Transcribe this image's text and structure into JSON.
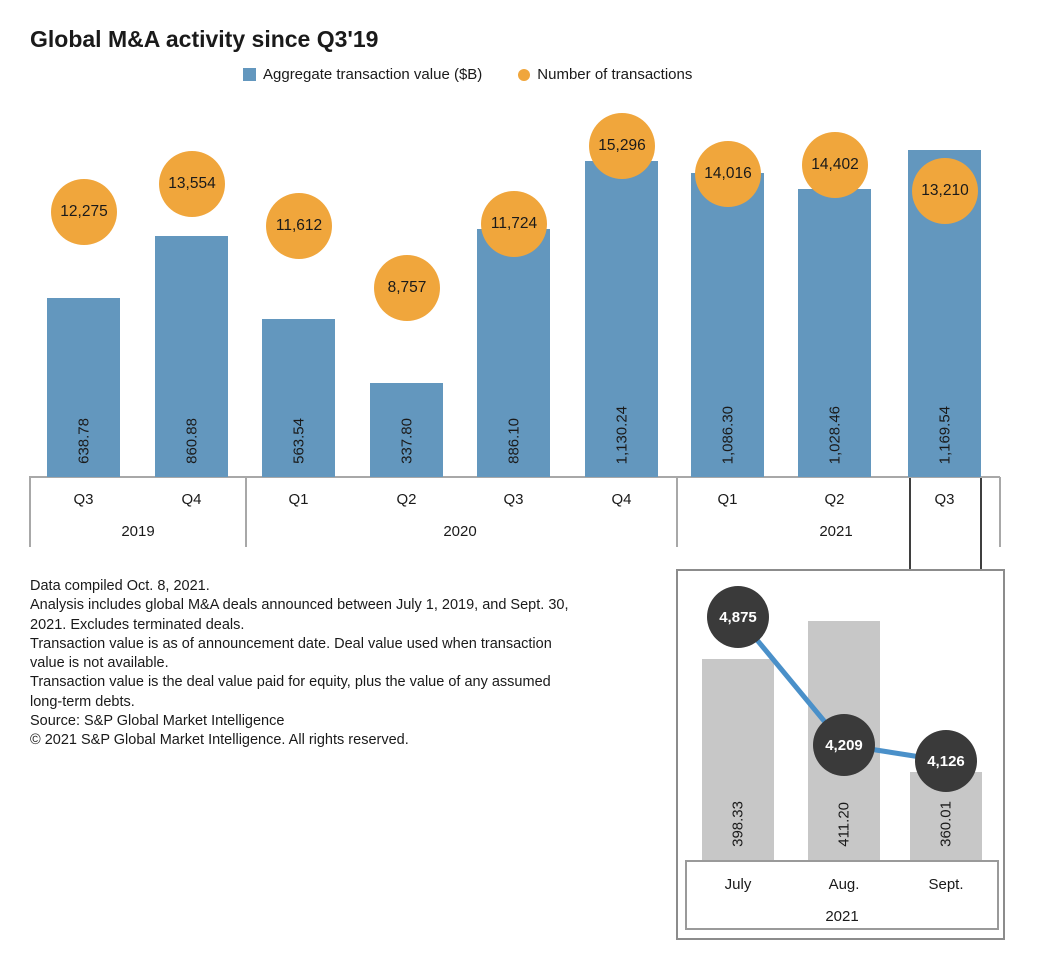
{
  "title": "Global M&A activity since Q3'19",
  "legend": [
    {
      "label": "Aggregate transaction value ($B)",
      "marker": "square",
      "color": "#6397be"
    },
    {
      "label": "Number of transactions",
      "marker": "circle",
      "color": "#f0a63c"
    }
  ],
  "chart_data": [
    {
      "id": "main-quarterly",
      "type": "bar",
      "title": "Global M&A activity since Q3'19",
      "categories": [
        "Q3",
        "Q4",
        "Q1",
        "Q2",
        "Q3",
        "Q4",
        "Q1",
        "Q2",
        "Q3"
      ],
      "year_groups": [
        {
          "label": "2019",
          "from": 0,
          "to": 1
        },
        {
          "label": "2020",
          "from": 2,
          "to": 5
        },
        {
          "label": "2021",
          "from": 6,
          "to": 8
        }
      ],
      "highlighted_category": "Q3 2021",
      "legend_position": "top",
      "grid": false,
      "series": [
        {
          "name": "Aggregate transaction value ($B)",
          "type": "bar",
          "values": [
            638.78,
            860.88,
            563.54,
            337.8,
            886.1,
            1130.24,
            1086.3,
            1028.46,
            1169.54
          ],
          "labels": [
            "638.78",
            "860.88",
            "563.54",
            "337.80",
            "886.10",
            "1,130.24",
            "1,086.30",
            "1,028.46",
            "1,169.54"
          ]
        },
        {
          "name": "Number of transactions",
          "type": "point",
          "values": [
            12275,
            13554,
            11612,
            8757,
            11724,
            15296,
            14016,
            14402,
            13210
          ],
          "labels": [
            "12,275",
            "13,554",
            "11,612",
            "8,757",
            "11,724",
            "15,296",
            "14,016",
            "14,402",
            "13,210"
          ]
        }
      ]
    },
    {
      "id": "inset-q3-2021-monthly",
      "type": "bar+line",
      "categories": [
        "July",
        "Aug.",
        "Sept."
      ],
      "year_groups": [
        {
          "label": "2021",
          "from": 0,
          "to": 2
        }
      ],
      "grid": false,
      "series": [
        {
          "name": "Aggregate transaction value ($B)",
          "type": "bar",
          "values": [
            398.33,
            411.2,
            360.01
          ],
          "labels": [
            "398.33",
            "411.20",
            "360.01"
          ]
        },
        {
          "name": "Number of transactions",
          "type": "line+point",
          "values": [
            4875,
            4209,
            4126
          ],
          "labels": [
            "4,875",
            "4,209",
            "4,126"
          ]
        }
      ]
    }
  ],
  "footnotes": [
    "Data compiled Oct. 8, 2021.",
    "Analysis includes global M&A deals announced between July 1, 2019, and Sept. 30,",
    "2021. Excludes terminated deals.",
    "Transaction value is as of announcement date. Deal value used when transaction",
    "value is not available.",
    "Transaction value is the deal value paid for equity, plus the value of any assumed",
    "long-term debts.",
    "Source: S&P Global Market Intelligence",
    "© 2021 S&P Global Market Intelligence. All rights reserved."
  ],
  "colors": {
    "bar_blue": "#6397be",
    "marker_orange": "#f0a63c",
    "inset_bar_gray": "#c7c7c7",
    "inset_marker_dark": "#3a3a3a",
    "line_blue": "#4a90c9",
    "axis_gray": "#a8a8a8",
    "callout_dark": "#3f3f3f",
    "text": "#1a1a1a"
  }
}
